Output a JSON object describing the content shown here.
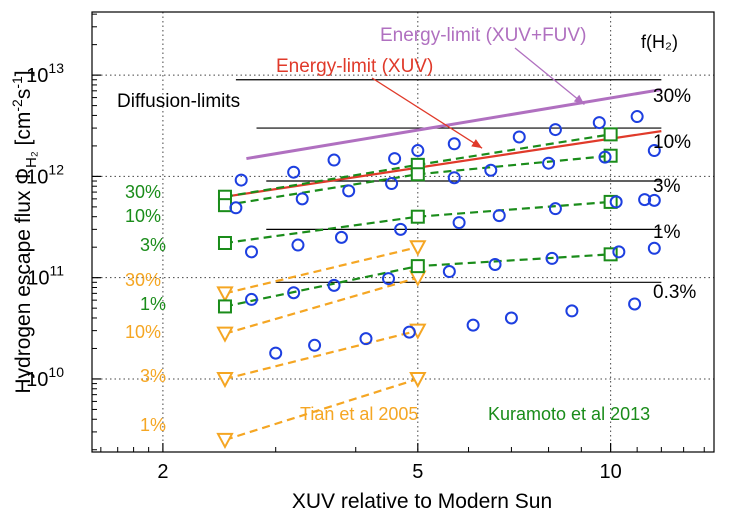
{
  "chart_data": {
    "type": "scatter",
    "xlabel": "XUV relative to Modern Sun",
    "ylabel": "Hydrogen escape flux ΦH₂ [cm⁻²s⁻¹]",
    "x_scale": "log",
    "y_scale": "log",
    "xlim": [
      1.55,
      14.5
    ],
    "ylim": [
      1900000000.0,
      42000000000000.0
    ],
    "grid": true,
    "x_ticks": [
      {
        "value": 2,
        "label": "2"
      },
      {
        "value": 5,
        "label": "5"
      },
      {
        "value": 10,
        "label": "10"
      }
    ],
    "y_ticks": [
      {
        "value": 10000000000.0,
        "base": "10",
        "exp": "10"
      },
      {
        "value": 100000000000.0,
        "base": "10",
        "exp": "11"
      },
      {
        "value": 1000000000000.0,
        "base": "10",
        "exp": "12"
      },
      {
        "value": 10000000000000.0,
        "base": "10",
        "exp": "13"
      }
    ],
    "colors": {
      "purple": "#b070c0",
      "red": "#e03a2a",
      "green": "#1a8c1a",
      "orange": "#f5a623",
      "blue": "#1d3fe0",
      "black": "#000000"
    },
    "energy_limit_xuv_fuv": {
      "label": "Energy-limit (XUV+FUV)",
      "x": [
        2.7,
        12.0
      ],
      "y": [
        1500000000000.0,
        7200000000000.0
      ]
    },
    "energy_limit_xuv": {
      "label": "Energy-limit (XUV)",
      "x": [
        2.5,
        12.0
      ],
      "y": [
        630000000000.0,
        2800000000000.0
      ]
    },
    "diffusion_limits": {
      "label": "Diffusion-limits",
      "lines": [
        {
          "x": [
            2.6,
            12.0
          ],
          "y": 9000000000000.0
        },
        {
          "x": [
            2.8,
            12.0
          ],
          "y": 3000000000000.0
        },
        {
          "x": [
            2.9,
            12.0
          ],
          "y": 900000000000.0
        },
        {
          "x": [
            2.9,
            12.0
          ],
          "y": 300000000000.0
        },
        {
          "x": [
            3.0,
            12.0
          ],
          "y": 90000000000.0
        }
      ]
    },
    "fh2_title": "f(H₂)",
    "fh2_labels": [
      "30%",
      "10%",
      "3%",
      "1%",
      "0.3%"
    ],
    "kuramoto": {
      "label": "Kuramoto et al  2013",
      "series": [
        {
          "name": "30%",
          "x": [
            2.5,
            5,
            10
          ],
          "y": [
            630000000000.0,
            1300000000000.0,
            2600000000000.0
          ]
        },
        {
          "name": "10%",
          "x": [
            2.5,
            5,
            10
          ],
          "y": [
            520000000000.0,
            1050000000000.0,
            1600000000000.0
          ]
        },
        {
          "name": "3%",
          "x": [
            2.5,
            5,
            10
          ],
          "y": [
            220000000000.0,
            400000000000.0,
            560000000000.0
          ]
        },
        {
          "name": "1%",
          "x": [
            2.5,
            5,
            10
          ],
          "y": [
            52000000000.0,
            130000000000.0,
            170000000000.0
          ]
        }
      ]
    },
    "tian": {
      "label": "Tian et al 2005",
      "series": [
        {
          "name": "30%",
          "x": [
            2.5,
            5
          ],
          "y": [
            70000000000.0,
            200000000000.0
          ]
        },
        {
          "name": "10%",
          "x": [
            2.5,
            5
          ],
          "y": [
            28000000000.0,
            100000000000.0
          ]
        },
        {
          "name": "3%",
          "x": [
            2.5,
            5
          ],
          "y": [
            10000000000.0,
            30000000000.0
          ]
        },
        {
          "name": "1%",
          "x": [
            2.5,
            5
          ],
          "y": [
            2500000000.0,
            10000000000.0
          ]
        }
      ]
    },
    "circles": {
      "x": [
        2.65,
        3.2,
        3.7,
        4.6,
        5.0,
        5.7,
        7.2,
        8.2,
        9.6,
        11.0,
        11.7,
        2.6,
        3.3,
        3.9,
        4.55,
        5.7,
        6.5,
        8.0,
        9.8,
        11.3,
        2.75,
        3.25,
        3.8,
        4.7,
        5.8,
        6.7,
        8.2,
        10.2,
        11.7,
        2.75,
        3.2,
        3.7,
        4.5,
        5.6,
        6.6,
        8.1,
        10.3,
        11.7,
        3.0,
        3.45,
        4.15,
        4.85,
        6.1,
        7.0,
        8.7,
        10.9
      ],
      "y": [
        920000000000.0,
        1100000000000.0,
        1450000000000.0,
        1500000000000.0,
        1800000000000.0,
        2100000000000.0,
        2450000000000.0,
        2900000000000.0,
        3400000000000.0,
        3900000000000.0,
        1800000000000.0,
        490000000000.0,
        600000000000.0,
        720000000000.0,
        850000000000.0,
        970000000000.0,
        1150000000000.0,
        1350000000000.0,
        1550000000000.0,
        590000000000.0,
        180000000000.0,
        210000000000.0,
        250000000000.0,
        300000000000.0,
        350000000000.0,
        410000000000.0,
        480000000000.0,
        560000000000.0,
        580000000000.0,
        61000000000.0,
        71000000000.0,
        84000000000.0,
        98000000000.0,
        115000000000.0,
        135000000000.0,
        155000000000.0,
        180000000000.0,
        195000000000.0,
        18000000000.0,
        21500000000.0,
        25000000000.0,
        29000000000.0,
        34000000000.0,
        40000000000.0,
        47000000000.0,
        55000000000.0
      ]
    }
  }
}
